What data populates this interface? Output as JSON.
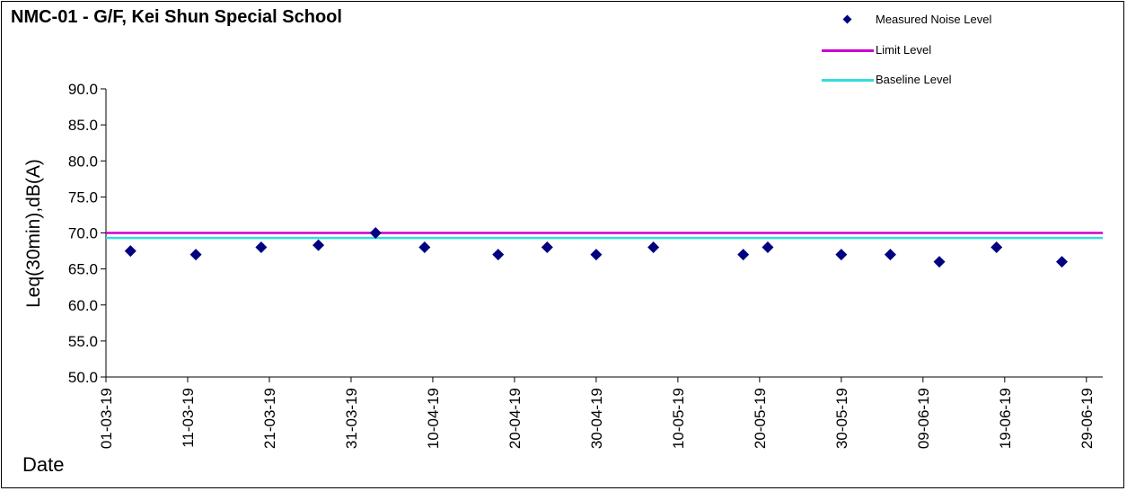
{
  "chart_data": {
    "type": "scatter",
    "title": "NMC-01 - G/F, Kei Shun Special School",
    "xlabel": "Date",
    "ylabel": "Leq(30min),dB(A)",
    "ylim": [
      50,
      90
    ],
    "yticks": [
      "50.0",
      "55.0",
      "60.0",
      "65.0",
      "70.0",
      "75.0",
      "80.0",
      "85.0",
      "90.0"
    ],
    "xlim": [
      "2019-03-01",
      "2019-07-01"
    ],
    "xticks": [
      "01-03-19",
      "11-03-19",
      "21-03-19",
      "31-03-19",
      "10-04-19",
      "20-04-19",
      "30-04-19",
      "10-05-19",
      "20-05-19",
      "30-05-19",
      "09-06-19",
      "19-06-19",
      "29-06-19"
    ],
    "grid": false,
    "legend": "top-right",
    "series": [
      {
        "name": "Measured Noise Level",
        "kind": "points",
        "color": "#000080",
        "points": [
          {
            "x": "2019-03-04",
            "y": 67.5
          },
          {
            "x": "2019-03-12",
            "y": 67.0
          },
          {
            "x": "2019-03-20",
            "y": 68.0
          },
          {
            "x": "2019-03-27",
            "y": 68.3
          },
          {
            "x": "2019-04-03",
            "y": 70.0
          },
          {
            "x": "2019-04-09",
            "y": 68.0
          },
          {
            "x": "2019-04-18",
            "y": 67.0
          },
          {
            "x": "2019-04-24",
            "y": 68.0
          },
          {
            "x": "2019-04-30",
            "y": 67.0
          },
          {
            "x": "2019-05-07",
            "y": 68.0
          },
          {
            "x": "2019-05-18",
            "y": 67.0
          },
          {
            "x": "2019-05-21",
            "y": 68.0
          },
          {
            "x": "2019-05-30",
            "y": 67.0
          },
          {
            "x": "2019-06-05",
            "y": 67.0
          },
          {
            "x": "2019-06-11",
            "y": 66.0
          },
          {
            "x": "2019-06-18",
            "y": 68.0
          },
          {
            "x": "2019-06-26",
            "y": 66.0
          }
        ]
      },
      {
        "name": "Limit Level",
        "kind": "hline",
        "color": "#cc00cc",
        "y": 70.0
      },
      {
        "name": "Baseline Level",
        "kind": "hline",
        "color": "#33dddd",
        "y": 69.3
      }
    ]
  }
}
